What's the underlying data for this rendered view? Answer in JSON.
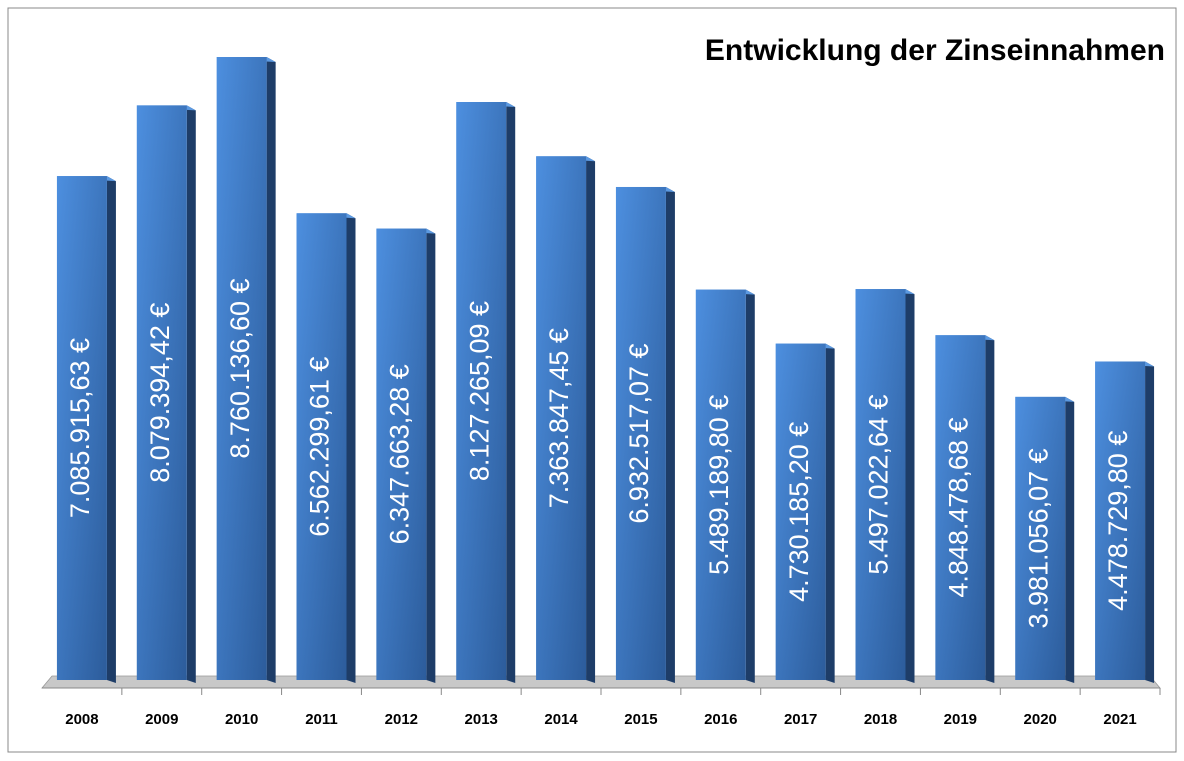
{
  "chart_data": {
    "type": "bar",
    "title": "Entwicklung der Zinseinnahmen",
    "categories": [
      "2008",
      "2009",
      "2010",
      "2011",
      "2012",
      "2013",
      "2014",
      "2015",
      "2016",
      "2017",
      "2018",
      "2019",
      "2020",
      "2021"
    ],
    "values": [
      7085915.63,
      8079394.42,
      8760136.6,
      6562299.61,
      6347663.28,
      8127265.09,
      7363847.45,
      6932517.07,
      5489189.8,
      4730185.2,
      5497022.64,
      4848478.68,
      3981056.07,
      4478729.8
    ],
    "value_labels": [
      "7.085.915,63 €",
      "8.079.394,42 €",
      "8.760.136,60 €",
      "6.562.299,61 €",
      "6.347.663,28 €",
      "8.127.265,09 €",
      "7.363.847,45 €",
      "6.932.517,07 €",
      "5.489.189,80 €",
      "4.730.185,20 €",
      "5.497.022,64 €",
      "4.848.478,68 €",
      "3.981.056,07 €",
      "4.478.729,80 €"
    ],
    "color": "#3a76c4"
  }
}
